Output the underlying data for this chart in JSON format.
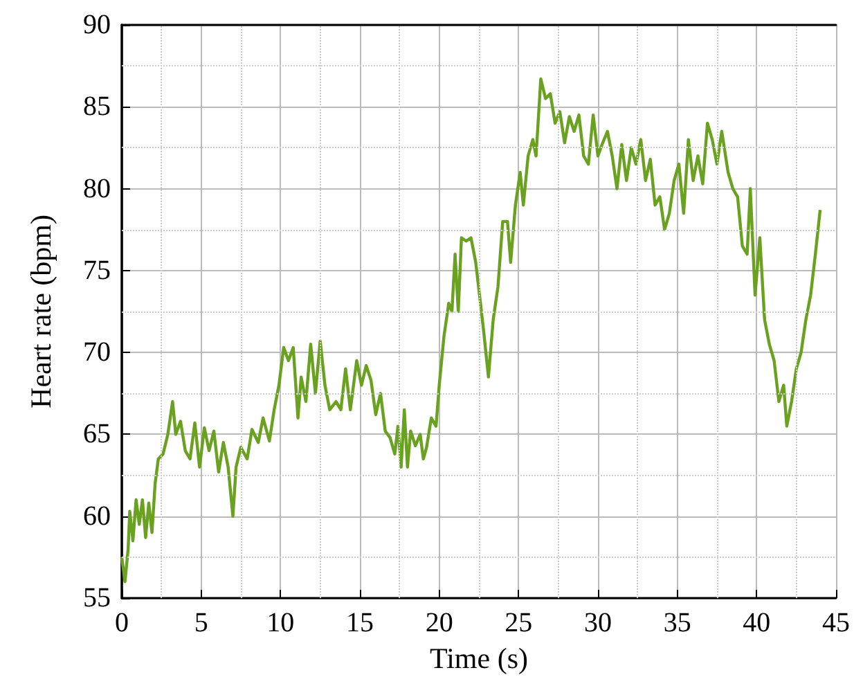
{
  "chart_data": {
    "type": "line",
    "xlabel": "Time (s)",
    "ylabel": "Heart rate (bpm)",
    "xlim": [
      0,
      45
    ],
    "ylim": [
      55,
      90
    ],
    "xticks": [
      0,
      5,
      10,
      15,
      20,
      25,
      30,
      35,
      40,
      45
    ],
    "yticks": [
      55,
      60,
      65,
      70,
      75,
      80,
      85,
      90
    ],
    "grid": true,
    "marker": "none",
    "line_style": "solid",
    "x": [
      0,
      0.2,
      0.4,
      0.5,
      0.7,
      0.9,
      1.1,
      1.3,
      1.5,
      1.7,
      1.9,
      2.1,
      2.3,
      2.6,
      2.9,
      3.2,
      3.4,
      3.7,
      4.0,
      4.3,
      4.6,
      4.9,
      5.2,
      5.5,
      5.8,
      6.1,
      6.4,
      6.7,
      7.0,
      7.2,
      7.5,
      7.9,
      8.2,
      8.6,
      8.9,
      9.3,
      9.6,
      9.9,
      10.2,
      10.5,
      10.8,
      11.1,
      11.3,
      11.6,
      11.9,
      12.2,
      12.5,
      12.8,
      13.1,
      13.5,
      13.8,
      14.1,
      14.4,
      14.8,
      15.1,
      15.4,
      15.7,
      16.0,
      16.3,
      16.6,
      16.9,
      17.2,
      17.4,
      17.6,
      17.8,
      18.0,
      18.2,
      18.5,
      18.8,
      19.0,
      19.2,
      19.5,
      19.8,
      20.0,
      20.3,
      20.6,
      20.8,
      21.0,
      21.2,
      21.4,
      21.7,
      22.0,
      22.3,
      22.6,
      22.8,
      23.1,
      23.4,
      23.7,
      24.0,
      24.3,
      24.5,
      24.8,
      25.1,
      25.3,
      25.6,
      25.9,
      26.1,
      26.4,
      26.7,
      27.0,
      27.3,
      27.6,
      27.9,
      28.2,
      28.5,
      28.8,
      29.1,
      29.4,
      29.7,
      30.0,
      30.3,
      30.6,
      30.9,
      31.2,
      31.5,
      31.8,
      32.1,
      32.4,
      32.7,
      33.0,
      33.3,
      33.6,
      33.9,
      34.2,
      34.5,
      34.8,
      35.1,
      35.4,
      35.7,
      36.0,
      36.3,
      36.6,
      36.9,
      37.2,
      37.5,
      37.8,
      38.2,
      38.5,
      38.8,
      39.1,
      39.4,
      39.6,
      39.9,
      40.2,
      40.5,
      40.8,
      41.1,
      41.4,
      41.7,
      41.9,
      42.2,
      42.5,
      42.8,
      43.1,
      43.4,
      43.7,
      44.0
    ],
    "series": [
      {
        "color": "#6aa121",
        "values": [
          57.5,
          56,
          58,
          60.3,
          58.5,
          61,
          59.5,
          61,
          58.7,
          60.8,
          59,
          62,
          63.5,
          63.8,
          65,
          67,
          65,
          65.8,
          64,
          63.5,
          65.7,
          63,
          65.4,
          64,
          65.2,
          62.7,
          64.5,
          63,
          60,
          63,
          64.2,
          63.5,
          65.3,
          64.5,
          66,
          64.6,
          66.5,
          68,
          70.3,
          69.5,
          70.3,
          66,
          68.5,
          67,
          70.5,
          67.5,
          70.7,
          68,
          66.5,
          67,
          66.5,
          69,
          66.5,
          69.5,
          68,
          69.2,
          68.3,
          66.2,
          67.5,
          65.2,
          64.8,
          63.8,
          65.5,
          63,
          66.5,
          63,
          65.2,
          64.3,
          65,
          63.5,
          64.2,
          66,
          65.5,
          68,
          71,
          73,
          72.5,
          76,
          72.5,
          77,
          76.8,
          77,
          75.5,
          73,
          71.3,
          68.5,
          72,
          74,
          78,
          78,
          75.5,
          79,
          81,
          79,
          82,
          83,
          82,
          86.7,
          85.5,
          85.8,
          84,
          84.7,
          82.8,
          84.4,
          83.5,
          84.5,
          82,
          81.5,
          84.5,
          82,
          82.8,
          83.5,
          82,
          80,
          82.7,
          80.5,
          82.5,
          81.5,
          83,
          80.5,
          81.8,
          79,
          79.5,
          77.5,
          78.5,
          80.5,
          81.5,
          78.5,
          83,
          80.5,
          82,
          80.3,
          84,
          83,
          81.5,
          83.5,
          81,
          80,
          79.5,
          76.5,
          76,
          80,
          73.5,
          77,
          72,
          70.5,
          69.5,
          67,
          68,
          65.5,
          67,
          69,
          70,
          72,
          73.5,
          76,
          78.7
        ]
      }
    ]
  }
}
